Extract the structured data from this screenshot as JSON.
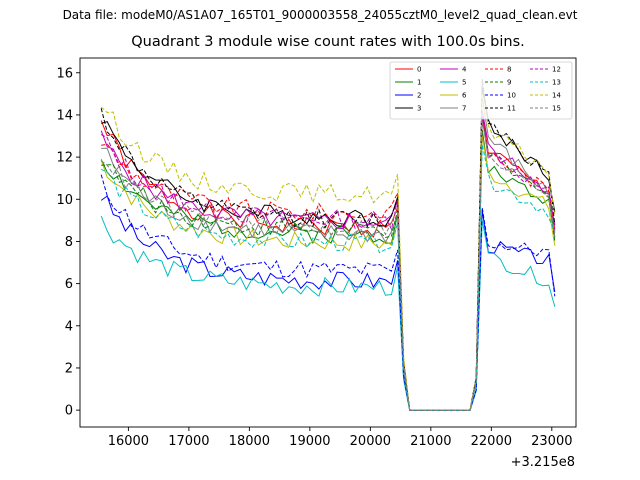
{
  "suptitle": "Data file: modeM0/AS1A07_165T01_9000003558_24055cztM0_level2_quad_clean.evt",
  "chart_data": {
    "type": "line",
    "title": "Quadrant 3 module wise count rates with 100.0s bins.",
    "xlabel": "",
    "ylabel": "",
    "x_offset_label": "+3.215e8",
    "xlim": [
      15200,
      23400
    ],
    "ylim": [
      -0.8,
      16.7
    ],
    "x_ticks": [
      16000,
      17000,
      18000,
      19000,
      20000,
      21000,
      22000,
      23000
    ],
    "y_ticks": [
      0,
      2,
      4,
      6,
      8,
      10,
      12,
      14,
      16
    ],
    "legend_position": "top-right",
    "series": [
      {
        "name": "0",
        "color": "#ff0000",
        "dash": "solid",
        "start": 13.7,
        "plateau": 8.6,
        "peak": 14.2,
        "end": 10.0,
        "tail": 8.6,
        "seed": 1
      },
      {
        "name": "1",
        "color": "#008000",
        "dash": "solid",
        "start": 12.0,
        "plateau": 8.3,
        "peak": 13.3,
        "end": 9.6,
        "tail": 8.2,
        "seed": 2
      },
      {
        "name": "2",
        "color": "#0000ff",
        "dash": "solid",
        "start": 10.2,
        "plateau": 6.1,
        "peak": 9.5,
        "end": 7.0,
        "tail": 5.6,
        "seed": 3
      },
      {
        "name": "3",
        "color": "#000000",
        "dash": "solid",
        "start": 14.0,
        "plateau": 9.1,
        "peak": 15.3,
        "end": 11.0,
        "tail": 9.4,
        "seed": 4
      },
      {
        "name": "4",
        "color": "#bf00bf",
        "dash": "solid",
        "start": 12.9,
        "plateau": 8.9,
        "peak": 14.2,
        "end": 10.3,
        "tail": 8.8,
        "seed": 5
      },
      {
        "name": "5",
        "color": "#00bfbf",
        "dash": "solid",
        "start": 9.0,
        "plateau": 5.8,
        "peak": 9.0,
        "end": 6.0,
        "tail": 4.9,
        "seed": 6
      },
      {
        "name": "6",
        "color": "#bfbf00",
        "dash": "solid",
        "start": 11.8,
        "plateau": 7.9,
        "peak": 13.0,
        "end": 9.5,
        "tail": 7.8,
        "seed": 7
      },
      {
        "name": "7",
        "color": "#808080",
        "dash": "solid",
        "start": 12.5,
        "plateau": 8.3,
        "peak": 14.8,
        "end": 10.0,
        "tail": 8.2,
        "seed": 8
      },
      {
        "name": "8",
        "color": "#ff0000",
        "dash": "dashed",
        "start": 12.8,
        "plateau": 9.3,
        "peak": 14.0,
        "end": 10.2,
        "tail": 8.5,
        "seed": 9
      },
      {
        "name": "9",
        "color": "#008000",
        "dash": "dashed",
        "start": 12.0,
        "plateau": 8.5,
        "peak": 13.9,
        "end": 9.8,
        "tail": 8.0,
        "seed": 10
      },
      {
        "name": "10",
        "color": "#0000ff",
        "dash": "dashed",
        "start": 10.8,
        "plateau": 6.6,
        "peak": 9.6,
        "end": 7.4,
        "tail": 5.4,
        "seed": 11
      },
      {
        "name": "11",
        "color": "#000000",
        "dash": "dashed",
        "start": 14.1,
        "plateau": 9.0,
        "peak": 15.7,
        "end": 10.8,
        "tail": 8.8,
        "seed": 12
      },
      {
        "name": "12",
        "color": "#bf00bf",
        "dash": "dashed",
        "start": 13.0,
        "plateau": 9.0,
        "peak": 14.0,
        "end": 10.1,
        "tail": 8.5,
        "seed": 13
      },
      {
        "name": "13",
        "color": "#00bfbf",
        "dash": "dashed",
        "start": 11.5,
        "plateau": 7.9,
        "peak": 12.6,
        "end": 9.3,
        "tail": 8.5,
        "seed": 14
      },
      {
        "name": "14",
        "color": "#bfbf00",
        "dash": "dashed",
        "start": 14.6,
        "plateau": 10.2,
        "peak": 15.0,
        "end": 11.2,
        "tail": 9.2,
        "seed": 15
      },
      {
        "name": "15",
        "color": "#808080",
        "dash": "dashed",
        "start": 12.2,
        "plateau": 8.6,
        "peak": 13.7,
        "end": 10.1,
        "tail": 8.4,
        "seed": 16
      }
    ],
    "segments": {
      "x_start": 15550,
      "x_step": 100,
      "active1_end": 20450,
      "gap_start": 20650,
      "gap_end": 21650,
      "active2_start": 21850,
      "x_end": 23050
    }
  }
}
